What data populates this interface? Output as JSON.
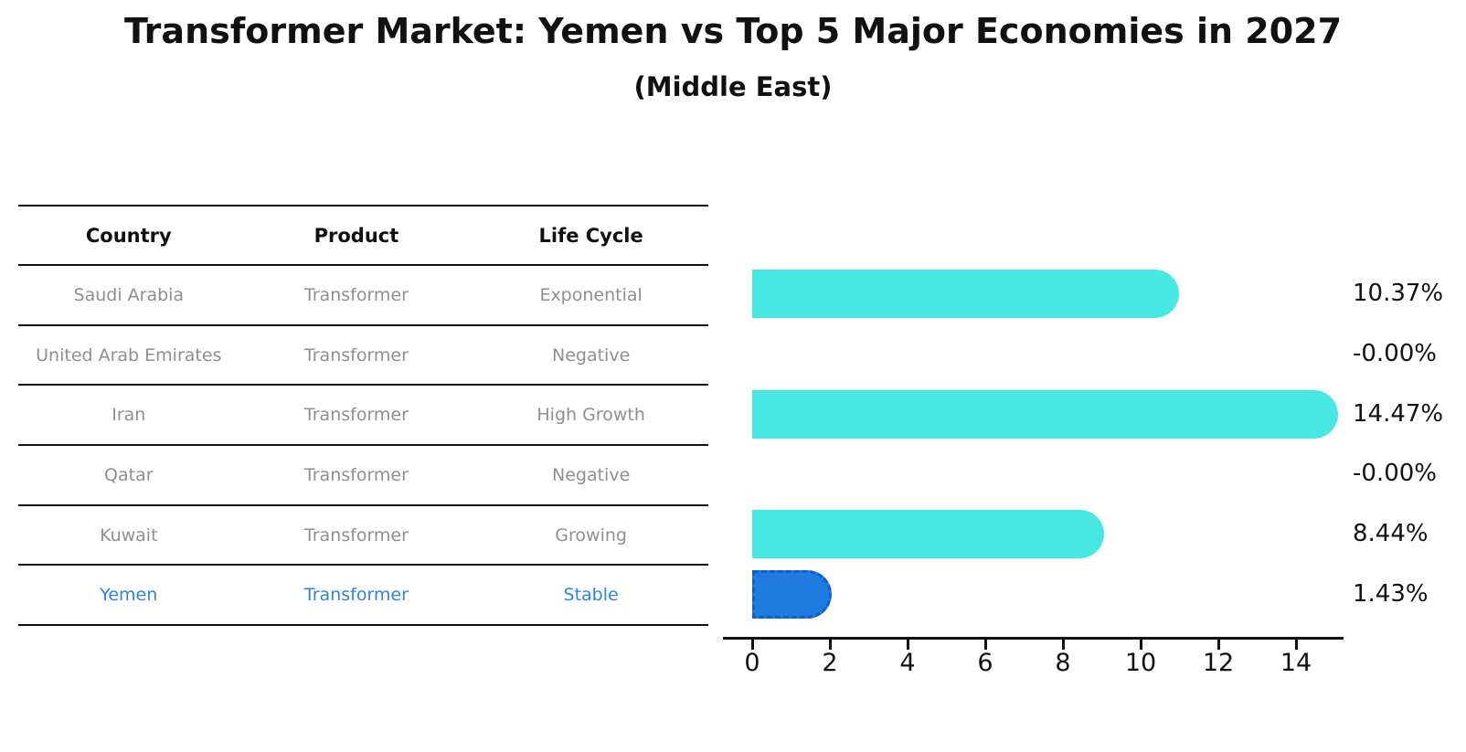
{
  "figure": {
    "title": "Transformer Market: Yemen vs Top 5 Major Economies in 2027",
    "subtitle": "(Middle East)"
  },
  "table": {
    "headers": [
      "Country",
      "Product",
      "Life Cycle"
    ],
    "rows": [
      {
        "country": "Saudi Arabia",
        "product": "Transformer",
        "life_cycle": "Exponential",
        "highlight": false
      },
      {
        "country": "United Arab Emirates",
        "product": "Transformer",
        "life_cycle": "Negative",
        "highlight": false
      },
      {
        "country": "Iran",
        "product": "Transformer",
        "life_cycle": "High Growth",
        "highlight": false
      },
      {
        "country": "Qatar",
        "product": "Transformer",
        "life_cycle": "Negative",
        "highlight": false
      },
      {
        "country": "Kuwait",
        "product": "Transformer",
        "life_cycle": "Growing",
        "highlight": false
      },
      {
        "country": "Yemen",
        "product": "Transformer",
        "life_cycle": "Stable",
        "highlight": true
      }
    ]
  },
  "chart_data": {
    "type": "bar",
    "orientation": "horizontal",
    "title": "Transformer Market: Yemen vs Top 5 Major Economies in 2027",
    "subtitle": "(Middle East)",
    "categories": [
      "Saudi Arabia",
      "United Arab Emirates",
      "Iran",
      "Qatar",
      "Kuwait",
      "Yemen"
    ],
    "values": [
      10.37,
      -0.0,
      14.47,
      -0.0,
      8.44,
      1.43
    ],
    "value_labels": [
      "10.37%",
      "-0.00%",
      "14.47%",
      "-0.00%",
      "8.44%",
      "1.43%"
    ],
    "xlabel": "",
    "ylabel": "",
    "x_ticks": [
      0,
      2,
      4,
      6,
      8,
      10,
      12,
      14
    ],
    "xlim": [
      -0.75,
      15.2
    ],
    "grid": false,
    "legend": "none",
    "bar_color": "#46e8e1",
    "highlight_color": "#1f7be0",
    "highlight_border_color": "#0f5fd0",
    "highlight_index": 5,
    "highlight_category": "Yemen"
  }
}
